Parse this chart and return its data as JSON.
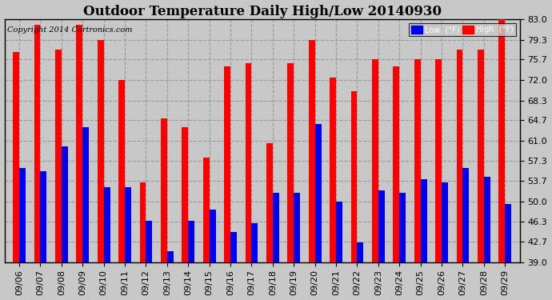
{
  "title": "Outdoor Temperature Daily High/Low 20140930",
  "copyright": "Copyright 2014 Cartronics.com",
  "legend_low": "Low  (°F)",
  "legend_high": "High  (°F)",
  "dates": [
    "09/06",
    "09/07",
    "09/08",
    "09/09",
    "09/10",
    "09/11",
    "09/12",
    "09/13",
    "09/14",
    "09/15",
    "09/16",
    "09/17",
    "09/18",
    "09/19",
    "09/20",
    "09/21",
    "09/22",
    "09/23",
    "09/24",
    "09/25",
    "09/26",
    "09/27",
    "09/28",
    "09/29"
  ],
  "highs": [
    77.0,
    82.0,
    77.5,
    82.0,
    79.3,
    72.0,
    53.5,
    65.0,
    63.5,
    58.0,
    74.5,
    75.0,
    60.5,
    75.0,
    79.3,
    72.5,
    70.0,
    75.7,
    74.5,
    75.7,
    75.7,
    77.5,
    77.5,
    83.0
  ],
  "lows": [
    56.0,
    55.5,
    60.0,
    63.5,
    52.5,
    52.5,
    46.5,
    41.0,
    46.5,
    48.5,
    44.5,
    46.0,
    51.5,
    51.5,
    64.0,
    50.0,
    42.5,
    52.0,
    51.5,
    54.0,
    53.5,
    56.0,
    54.5,
    49.5
  ],
  "ylim_min": 39.0,
  "ylim_max": 83.0,
  "yticks": [
    39.0,
    42.7,
    46.3,
    50.0,
    53.7,
    57.3,
    61.0,
    64.7,
    68.3,
    72.0,
    75.7,
    79.3,
    83.0
  ],
  "color_high": "#FF0000",
  "color_low": "#0000EE",
  "bg_color": "#C8C8C8",
  "plot_bg_color": "#C8C8C8",
  "grid_color": "#999999",
  "bar_width": 0.3,
  "title_fontsize": 12,
  "tick_fontsize": 8,
  "copyright_fontsize": 7
}
